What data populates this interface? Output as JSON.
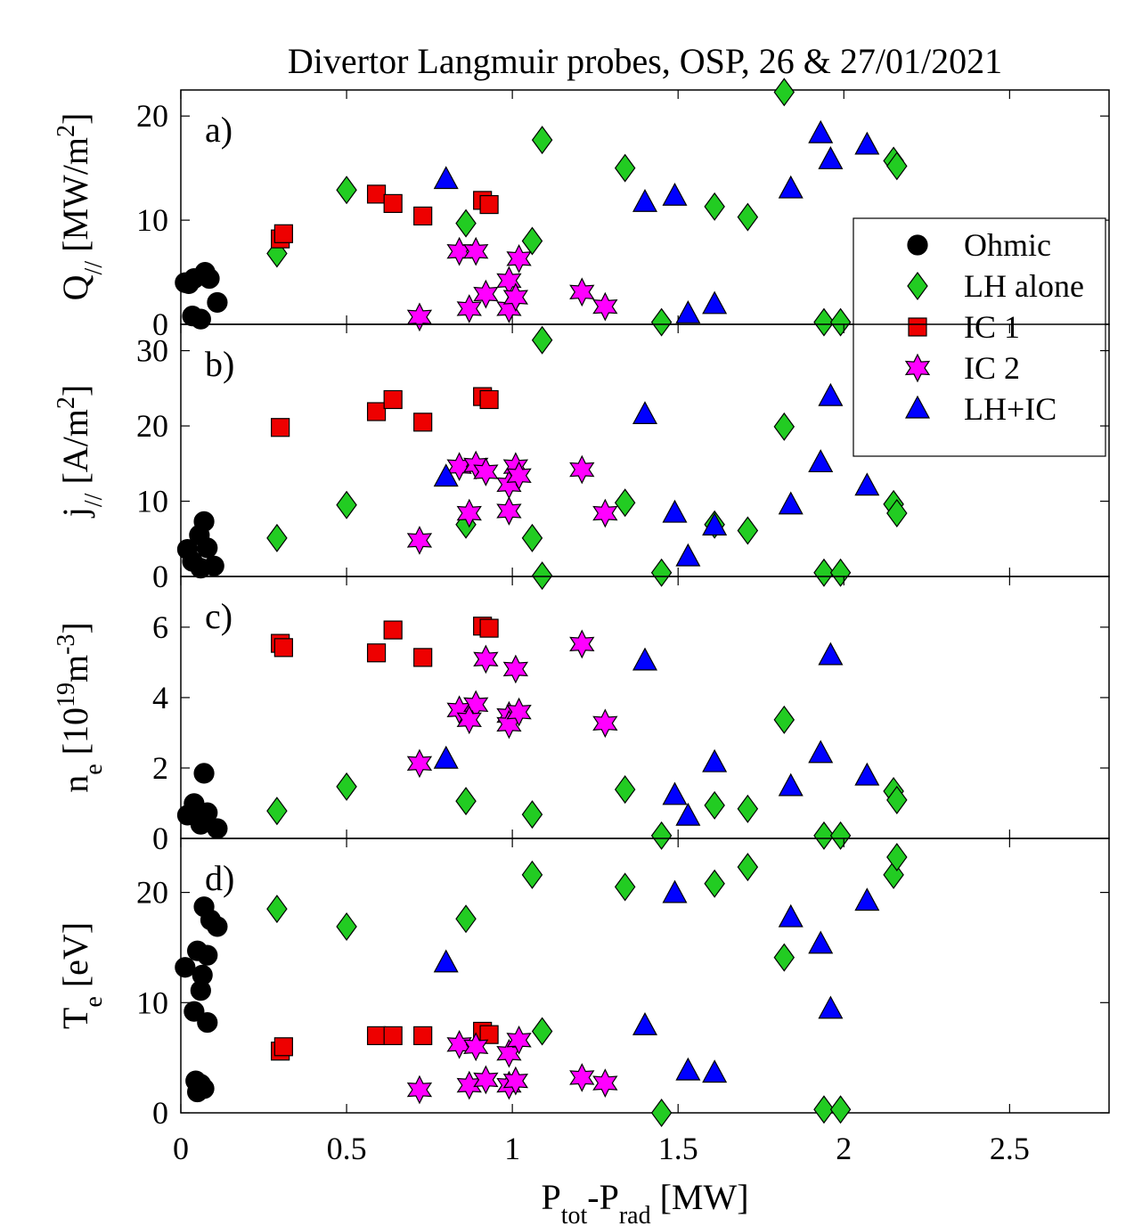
{
  "chart_data": [
    {
      "type": "scatter",
      "title": "Divertor Langmuir probes, OSP, 26 & 27/01/2021",
      "label": "a)",
      "ylabel": [
        "Q",
        "//",
        " [MW/m",
        "2",
        "]"
      ],
      "ylim": [
        0,
        22.5
      ],
      "yticks": [
        0,
        10,
        20
      ],
      "legend": "upper right",
      "series": [
        {
          "name": "Ohmic",
          "color": "#000000",
          "marker": "circle",
          "x": [
            0.013,
            0.04,
            0.073,
            0.086,
            0.11,
            0.035,
            0.06,
            0.024
          ],
          "values": [
            4.0,
            4.4,
            5.0,
            4.4,
            2.1,
            0.8,
            0.5,
            3.9
          ]
        },
        {
          "name": "LH alone",
          "color": "#22cc22",
          "marker": "diamond",
          "x": [
            0.29,
            0.5,
            0.86,
            1.06,
            1.09,
            1.34,
            1.45,
            1.61,
            1.71,
            1.82,
            1.94,
            1.99,
            2.15,
            2.16
          ],
          "values": [
            6.8,
            12.9,
            9.7,
            8.0,
            17.7,
            15.0,
            0.2,
            11.3,
            10.3,
            22.3,
            0.2,
            0.2,
            15.7,
            15.2
          ]
        },
        {
          "name": "IC 1",
          "color": "#ee0000",
          "marker": "square",
          "x": [
            0.3,
            0.31,
            0.59,
            0.64,
            0.73,
            0.91,
            0.93
          ],
          "values": [
            8.2,
            8.7,
            12.5,
            11.6,
            10.4,
            11.9,
            11.5
          ]
        },
        {
          "name": "IC 2",
          "color": "#ff00ff",
          "marker": "star",
          "x": [
            0.72,
            0.84,
            0.89,
            0.87,
            0.92,
            0.99,
            0.99,
            1.01,
            1.02,
            1.21,
            1.28
          ],
          "values": [
            0.7,
            7.0,
            7.0,
            1.5,
            2.9,
            4.2,
            1.5,
            2.6,
            6.3,
            3.1,
            1.7
          ]
        },
        {
          "name": "LH+IC",
          "color": "#0000ff",
          "marker": "triangle",
          "x": [
            0.8,
            1.4,
            1.49,
            1.53,
            1.61,
            1.84,
            1.93,
            1.96,
            2.07
          ],
          "values": [
            13.9,
            11.7,
            12.3,
            1.0,
            1.9,
            13.0,
            18.3,
            15.8,
            17.2
          ]
        }
      ]
    },
    {
      "type": "scatter",
      "label": "b)",
      "ylabel": [
        "j",
        "//",
        " [A/m",
        "2",
        "]"
      ],
      "ylim": [
        0,
        33.5
      ],
      "yticks": [
        0,
        10,
        20,
        30
      ],
      "series": [
        {
          "color": "#000000",
          "marker": "circle",
          "x": [
            0.02,
            0.07,
            0.056,
            0.08,
            0.035,
            0.1,
            0.06
          ],
          "values": [
            3.6,
            7.3,
            5.5,
            3.8,
            2.0,
            1.4,
            1.1
          ]
        },
        {
          "color": "#22cc22",
          "marker": "diamond",
          "x": [
            0.29,
            0.5,
            0.86,
            1.06,
            1.09,
            1.09,
            1.34,
            1.45,
            1.61,
            1.71,
            1.82,
            1.94,
            1.99,
            2.15,
            2.16
          ],
          "values": [
            5.1,
            9.5,
            6.9,
            5.1,
            31.4,
            0.1,
            9.8,
            0.5,
            6.9,
            6.1,
            19.9,
            0.5,
            0.5,
            9.6,
            8.4
          ]
        },
        {
          "color": "#ee0000",
          "marker": "square",
          "x": [
            0.3,
            0.59,
            0.64,
            0.73,
            0.91,
            0.93
          ],
          "values": [
            19.8,
            21.9,
            23.5,
            20.5,
            23.9,
            23.5
          ]
        },
        {
          "color": "#ff00ff",
          "marker": "star",
          "x": [
            0.72,
            0.84,
            0.89,
            0.87,
            0.92,
            0.99,
            0.99,
            1.01,
            1.02,
            1.21,
            1.28
          ],
          "values": [
            4.8,
            14.6,
            14.8,
            8.4,
            13.9,
            8.7,
            12.2,
            14.6,
            13.4,
            14.2,
            8.4
          ]
        },
        {
          "color": "#0000ff",
          "marker": "triangle",
          "x": [
            0.8,
            1.4,
            1.49,
            1.53,
            1.61,
            1.84,
            1.93,
            1.96,
            2.07
          ],
          "values": [
            13.2,
            21.5,
            8.4,
            2.6,
            6.7,
            9.5,
            15.1,
            23.9,
            12.0
          ]
        }
      ]
    },
    {
      "type": "scatter",
      "label": "c)",
      "ylabel": [
        "n",
        "e",
        " [10",
        "19",
        "m",
        "-3",
        "]"
      ],
      "ylim": [
        0,
        7.44
      ],
      "yticks": [
        0,
        2,
        4,
        6
      ],
      "series": [
        {
          "color": "#000000",
          "marker": "circle",
          "x": [
            0.07,
            0.02,
            0.04,
            0.08,
            0.11,
            0.06
          ],
          "values": [
            1.85,
            0.66,
            0.99,
            0.73,
            0.28,
            0.4
          ]
        },
        {
          "color": "#22cc22",
          "marker": "diamond",
          "x": [
            0.29,
            0.5,
            0.86,
            1.06,
            1.34,
            1.45,
            1.61,
            1.71,
            1.82,
            1.94,
            1.99,
            2.15,
            2.16
          ],
          "values": [
            0.78,
            1.47,
            1.06,
            0.68,
            1.39,
            0.08,
            0.94,
            0.84,
            3.37,
            0.08,
            0.08,
            1.34,
            1.09
          ]
        },
        {
          "color": "#ee0000",
          "marker": "square",
          "x": [
            0.3,
            0.31,
            0.59,
            0.64,
            0.73,
            0.91,
            0.93
          ],
          "values": [
            5.54,
            5.42,
            5.27,
            5.92,
            5.14,
            6.03,
            5.97
          ]
        },
        {
          "color": "#ff00ff",
          "marker": "star",
          "x": [
            0.72,
            0.84,
            0.89,
            0.87,
            0.92,
            0.99,
            0.99,
            1.01,
            1.02,
            1.21,
            1.28
          ],
          "values": [
            2.13,
            3.65,
            3.8,
            3.37,
            5.09,
            3.49,
            3.24,
            4.81,
            3.59,
            5.52,
            3.27
          ]
        },
        {
          "color": "#0000ff",
          "marker": "triangle",
          "x": [
            0.8,
            1.4,
            1.49,
            1.53,
            1.61,
            1.84,
            1.93,
            1.96,
            2.07
          ],
          "values": [
            2.25,
            5.04,
            1.22,
            0.63,
            2.15,
            1.47,
            2.41,
            5.19,
            1.77
          ]
        }
      ]
    },
    {
      "type": "scatter",
      "label": "d)",
      "ylabel": [
        "T",
        "e",
        " [eV]"
      ],
      "ylim": [
        0,
        24.9
      ],
      "yticks": [
        0,
        10,
        20
      ],
      "xlabel": [
        "P",
        "tot",
        "-P",
        "rad",
        " [MW]"
      ],
      "xlim": [
        0,
        2.8
      ],
      "xticks": [
        0,
        0.5,
        1,
        1.5,
        2,
        2.5
      ],
      "series": [
        {
          "color": "#000000",
          "marker": "circle",
          "x": [
            0.013,
            0.07,
            0.11,
            0.09,
            0.05,
            0.08,
            0.065,
            0.06,
            0.04,
            0.08,
            0.045,
            0.06,
            0.07,
            0.05
          ],
          "values": [
            13.2,
            18.7,
            16.9,
            17.5,
            14.7,
            14.3,
            12.5,
            11.1,
            9.2,
            8.2,
            2.9,
            2.6,
            2.2,
            1.9
          ]
        },
        {
          "color": "#22cc22",
          "marker": "diamond",
          "x": [
            0.29,
            0.5,
            0.86,
            1.06,
            1.09,
            1.34,
            1.45,
            1.61,
            1.71,
            1.82,
            1.94,
            1.99,
            2.15,
            2.16
          ],
          "values": [
            18.5,
            16.9,
            17.6,
            21.6,
            7.4,
            20.5,
            0,
            20.8,
            22.3,
            14.1,
            0.3,
            0.3,
            21.6,
            23.2
          ]
        },
        {
          "color": "#ee0000",
          "marker": "square",
          "x": [
            0.3,
            0.31,
            0.59,
            0.64,
            0.73,
            0.91,
            0.93
          ],
          "values": [
            5.6,
            6.0,
            7.0,
            7.0,
            7.0,
            7.4,
            7.1
          ]
        },
        {
          "color": "#ff00ff",
          "marker": "star",
          "x": [
            0.72,
            0.84,
            0.89,
            0.87,
            0.92,
            0.99,
            0.99,
            1.01,
            1.02,
            1.21,
            1.28
          ],
          "values": [
            2.1,
            6.2,
            6.0,
            2.5,
            3.0,
            5.4,
            2.5,
            2.9,
            6.6,
            3.2,
            2.7
          ]
        },
        {
          "color": "#0000ff",
          "marker": "triangle",
          "x": [
            0.8,
            1.4,
            1.49,
            1.53,
            1.61,
            1.84,
            1.93,
            1.96,
            2.07
          ],
          "values": [
            13.6,
            7.9,
            19.9,
            3.8,
            3.6,
            17.7,
            15.3,
            9.4,
            19.2
          ]
        }
      ]
    }
  ]
}
